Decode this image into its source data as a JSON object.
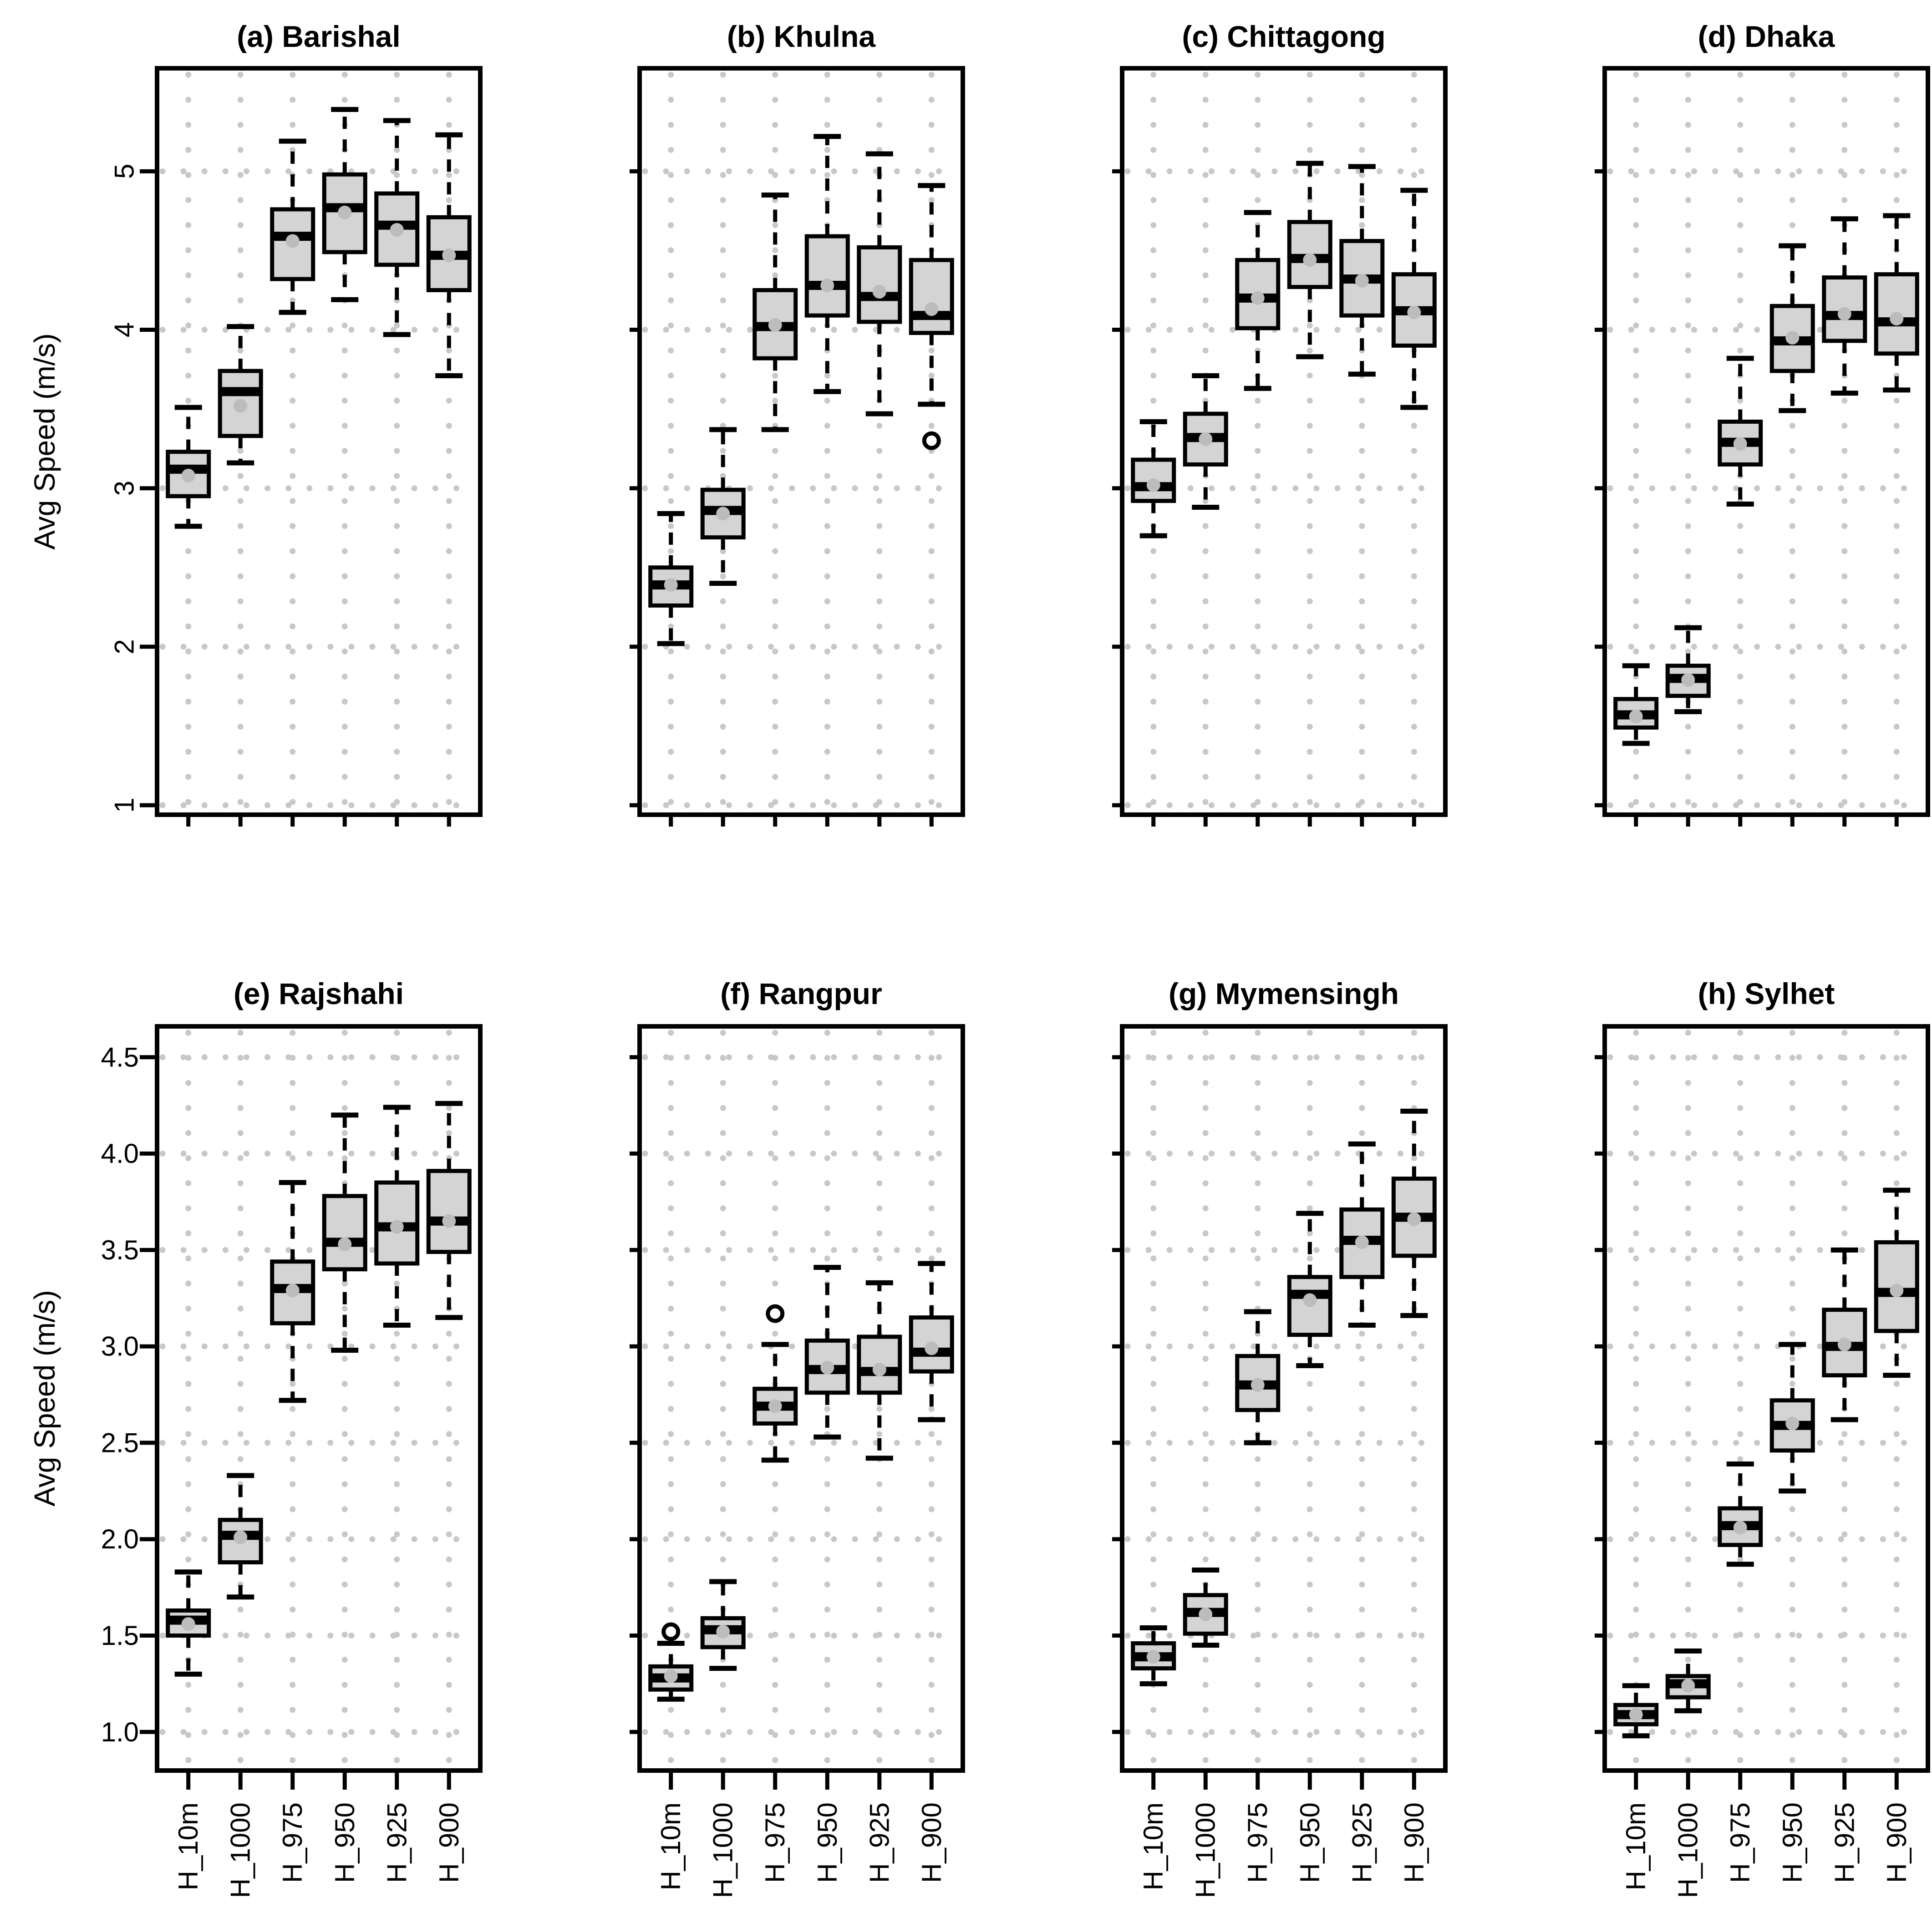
{
  "figure": {
    "ylabel": "Avg Speed (m/s)"
  },
  "chart_data": {
    "type": "boxplot",
    "layout": "2x4-grid",
    "grid": "dotted",
    "ylabel": "Avg Speed (m/s)",
    "categories": [
      "H_10m",
      "H_1000",
      "H_975",
      "H_950",
      "H_925",
      "H_900"
    ],
    "rows": [
      {
        "ylim": [
          0.94,
          5.65
        ],
        "yticks": [
          1,
          2,
          3,
          4,
          5
        ],
        "ytick_labels": [
          "1",
          "2",
          "3",
          "4",
          "5"
        ],
        "ytick_label_rotated": true
      },
      {
        "ylim": [
          0.8,
          4.66
        ],
        "yticks": [
          1.0,
          1.5,
          2.0,
          2.5,
          3.0,
          3.5,
          4.0,
          4.5
        ],
        "ytick_labels": [
          "1.0",
          "1.5",
          "2.0",
          "2.5",
          "3.0",
          "3.5",
          "4.0",
          "4.5"
        ],
        "ytick_label_rotated": false
      }
    ],
    "panels": [
      {
        "title": "(a) Barishal",
        "row": 0,
        "boxes": [
          {
            "whislo": 2.76,
            "q1": 2.95,
            "med": 3.12,
            "q3": 3.23,
            "whishi": 3.51,
            "mean": 3.08,
            "outliers": []
          },
          {
            "whislo": 3.16,
            "q1": 3.33,
            "med": 3.61,
            "q3": 3.74,
            "whishi": 4.02,
            "mean": 3.52,
            "outliers": []
          },
          {
            "whislo": 4.11,
            "q1": 4.32,
            "med": 4.59,
            "q3": 4.76,
            "whishi": 5.19,
            "mean": 4.56,
            "outliers": []
          },
          {
            "whislo": 4.19,
            "q1": 4.49,
            "med": 4.77,
            "q3": 4.98,
            "whishi": 5.39,
            "mean": 4.74,
            "outliers": []
          },
          {
            "whislo": 3.97,
            "q1": 4.41,
            "med": 4.66,
            "q3": 4.86,
            "whishi": 5.32,
            "mean": 4.63,
            "outliers": []
          },
          {
            "whislo": 3.71,
            "q1": 4.25,
            "med": 4.47,
            "q3": 4.71,
            "whishi": 5.23,
            "mean": 4.47,
            "outliers": []
          }
        ]
      },
      {
        "title": "(b) Khulna",
        "row": 0,
        "boxes": [
          {
            "whislo": 2.02,
            "q1": 2.26,
            "med": 2.39,
            "q3": 2.5,
            "whishi": 2.84,
            "mean": 2.39,
            "outliers": []
          },
          {
            "whislo": 2.4,
            "q1": 2.69,
            "med": 2.86,
            "q3": 2.99,
            "whishi": 3.37,
            "mean": 2.84,
            "outliers": []
          },
          {
            "whislo": 3.37,
            "q1": 3.82,
            "med": 4.02,
            "q3": 4.25,
            "whishi": 4.85,
            "mean": 4.03,
            "outliers": []
          },
          {
            "whislo": 3.61,
            "q1": 4.09,
            "med": 4.28,
            "q3": 4.59,
            "whishi": 5.22,
            "mean": 4.28,
            "outliers": []
          },
          {
            "whislo": 3.47,
            "q1": 4.05,
            "med": 4.21,
            "q3": 4.52,
            "whishi": 5.11,
            "mean": 4.24,
            "outliers": []
          },
          {
            "whislo": 3.53,
            "q1": 3.98,
            "med": 4.09,
            "q3": 4.44,
            "whishi": 4.91,
            "mean": 4.13,
            "outliers": [
              3.3
            ]
          }
        ]
      },
      {
        "title": "(c) Chittagong",
        "row": 0,
        "boxes": [
          {
            "whislo": 2.7,
            "q1": 2.92,
            "med": 3.01,
            "q3": 3.18,
            "whishi": 3.42,
            "mean": 3.02,
            "outliers": []
          },
          {
            "whislo": 2.88,
            "q1": 3.15,
            "med": 3.32,
            "q3": 3.47,
            "whishi": 3.71,
            "mean": 3.31,
            "outliers": []
          },
          {
            "whislo": 3.63,
            "q1": 4.01,
            "med": 4.2,
            "q3": 4.44,
            "whishi": 4.74,
            "mean": 4.2,
            "outliers": []
          },
          {
            "whislo": 3.83,
            "q1": 4.27,
            "med": 4.45,
            "q3": 4.68,
            "whishi": 5.05,
            "mean": 4.44,
            "outliers": []
          },
          {
            "whislo": 3.72,
            "q1": 4.09,
            "med": 4.32,
            "q3": 4.56,
            "whishi": 5.03,
            "mean": 4.31,
            "outliers": []
          },
          {
            "whislo": 3.51,
            "q1": 3.9,
            "med": 4.12,
            "q3": 4.35,
            "whishi": 4.88,
            "mean": 4.11,
            "outliers": []
          }
        ]
      },
      {
        "title": "(d) Dhaka",
        "row": 0,
        "boxes": [
          {
            "whislo": 1.39,
            "q1": 1.49,
            "med": 1.57,
            "q3": 1.67,
            "whishi": 1.88,
            "mean": 1.56,
            "outliers": []
          },
          {
            "whislo": 1.59,
            "q1": 1.69,
            "med": 1.8,
            "q3": 1.88,
            "whishi": 2.12,
            "mean": 1.79,
            "outliers": []
          },
          {
            "whislo": 2.9,
            "q1": 3.15,
            "med": 3.29,
            "q3": 3.42,
            "whishi": 3.82,
            "mean": 3.28,
            "outliers": []
          },
          {
            "whislo": 3.49,
            "q1": 3.74,
            "med": 3.93,
            "q3": 4.15,
            "whishi": 4.53,
            "mean": 3.95,
            "outliers": []
          },
          {
            "whislo": 3.6,
            "q1": 3.93,
            "med": 4.09,
            "q3": 4.33,
            "whishi": 4.7,
            "mean": 4.1,
            "outliers": []
          },
          {
            "whislo": 3.62,
            "q1": 3.85,
            "med": 4.05,
            "q3": 4.35,
            "whishi": 4.72,
            "mean": 4.07,
            "outliers": []
          }
        ]
      },
      {
        "title": "(e) Rajshahi",
        "row": 1,
        "boxes": [
          {
            "whislo": 1.3,
            "q1": 1.5,
            "med": 1.58,
            "q3": 1.63,
            "whishi": 1.83,
            "mean": 1.56,
            "outliers": []
          },
          {
            "whislo": 1.7,
            "q1": 1.88,
            "med": 2.02,
            "q3": 2.1,
            "whishi": 2.33,
            "mean": 2.01,
            "outliers": []
          },
          {
            "whislo": 2.72,
            "q1": 3.12,
            "med": 3.3,
            "q3": 3.44,
            "whishi": 3.85,
            "mean": 3.29,
            "outliers": []
          },
          {
            "whislo": 2.98,
            "q1": 3.4,
            "med": 3.54,
            "q3": 3.78,
            "whishi": 4.2,
            "mean": 3.53,
            "outliers": []
          },
          {
            "whislo": 3.11,
            "q1": 3.43,
            "med": 3.62,
            "q3": 3.85,
            "whishi": 4.24,
            "mean": 3.62,
            "outliers": []
          },
          {
            "whislo": 3.15,
            "q1": 3.49,
            "med": 3.65,
            "q3": 3.91,
            "whishi": 4.26,
            "mean": 3.65,
            "outliers": []
          }
        ]
      },
      {
        "title": "(f) Rangpur",
        "row": 1,
        "boxes": [
          {
            "whislo": 1.17,
            "q1": 1.22,
            "med": 1.28,
            "q3": 1.34,
            "whishi": 1.46,
            "mean": 1.29,
            "outliers": [
              1.52
            ]
          },
          {
            "whislo": 1.33,
            "q1": 1.44,
            "med": 1.53,
            "q3": 1.59,
            "whishi": 1.78,
            "mean": 1.52,
            "outliers": []
          },
          {
            "whislo": 2.41,
            "q1": 2.6,
            "med": 2.69,
            "q3": 2.78,
            "whishi": 3.01,
            "mean": 2.69,
            "outliers": [
              3.17
            ]
          },
          {
            "whislo": 2.53,
            "q1": 2.76,
            "med": 2.88,
            "q3": 3.03,
            "whishi": 3.41,
            "mean": 2.89,
            "outliers": []
          },
          {
            "whislo": 2.42,
            "q1": 2.76,
            "med": 2.87,
            "q3": 3.05,
            "whishi": 3.33,
            "mean": 2.88,
            "outliers": []
          },
          {
            "whislo": 2.62,
            "q1": 2.87,
            "med": 2.97,
            "q3": 3.15,
            "whishi": 3.43,
            "mean": 2.99,
            "outliers": []
          }
        ]
      },
      {
        "title": "(g) Mymensingh",
        "row": 1,
        "boxes": [
          {
            "whislo": 1.25,
            "q1": 1.33,
            "med": 1.39,
            "q3": 1.46,
            "whishi": 1.54,
            "mean": 1.39,
            "outliers": []
          },
          {
            "whislo": 1.45,
            "q1": 1.51,
            "med": 1.62,
            "q3": 1.71,
            "whishi": 1.84,
            "mean": 1.61,
            "outliers": []
          },
          {
            "whislo": 2.5,
            "q1": 2.67,
            "med": 2.8,
            "q3": 2.95,
            "whishi": 3.18,
            "mean": 2.8,
            "outliers": []
          },
          {
            "whislo": 2.9,
            "q1": 3.06,
            "med": 3.27,
            "q3": 3.36,
            "whishi": 3.69,
            "mean": 3.24,
            "outliers": []
          },
          {
            "whislo": 3.11,
            "q1": 3.36,
            "med": 3.55,
            "q3": 3.71,
            "whishi": 4.05,
            "mean": 3.54,
            "outliers": []
          },
          {
            "whislo": 3.16,
            "q1": 3.47,
            "med": 3.67,
            "q3": 3.87,
            "whishi": 4.22,
            "mean": 3.66,
            "outliers": []
          }
        ]
      },
      {
        "title": "(h) Sylhet",
        "row": 1,
        "boxes": [
          {
            "whislo": 0.98,
            "q1": 1.04,
            "med": 1.09,
            "q3": 1.14,
            "whishi": 1.24,
            "mean": 1.09,
            "outliers": []
          },
          {
            "whislo": 1.11,
            "q1": 1.18,
            "med": 1.25,
            "q3": 1.29,
            "whishi": 1.42,
            "mean": 1.24,
            "outliers": []
          },
          {
            "whislo": 1.87,
            "q1": 1.97,
            "med": 2.07,
            "q3": 2.16,
            "whishi": 2.39,
            "mean": 2.06,
            "outliers": []
          },
          {
            "whislo": 2.25,
            "q1": 2.46,
            "med": 2.59,
            "q3": 2.72,
            "whishi": 3.01,
            "mean": 2.6,
            "outliers": []
          },
          {
            "whislo": 2.62,
            "q1": 2.85,
            "med": 3.0,
            "q3": 3.19,
            "whishi": 3.5,
            "mean": 3.01,
            "outliers": []
          },
          {
            "whislo": 2.85,
            "q1": 3.08,
            "med": 3.28,
            "q3": 3.54,
            "whishi": 3.81,
            "mean": 3.29,
            "outliers": []
          }
        ]
      }
    ],
    "colors": {
      "box_fill": "#d4d4d4",
      "line": "#000000",
      "grid_dot": "#c8c8c8",
      "mean_dot": "#bcbcbc"
    }
  }
}
